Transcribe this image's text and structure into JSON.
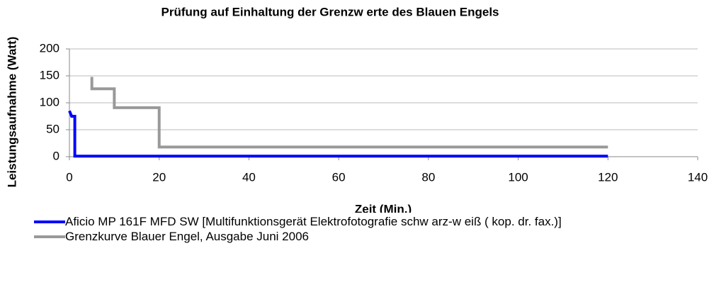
{
  "chart_data": {
    "type": "line",
    "title": "Prüfung auf Einhaltung der Grenzw erte des Blauen Engels",
    "x_label": "Zeit (Min.)",
    "y_label": "Leistungsaufnahme (Watt)",
    "xlim": [
      0,
      140
    ],
    "xticks": [
      0,
      20,
      40,
      60,
      80,
      100,
      120,
      140
    ],
    "ylim": [
      0,
      200
    ],
    "yticks": [
      0,
      50,
      100,
      150,
      200
    ],
    "grid": true,
    "legend": "bottom",
    "series": [
      {
        "name": "Aficio MP 161F MFD SW [Multifunktionsgerät Elektrofotografie schw arz-w eiß ( kop. dr. fax.)]",
        "color": "#0000ff",
        "x": [
          0,
          0.5,
          1.2,
          1.2,
          120
        ],
        "values": [
          85,
          75,
          75,
          1,
          1
        ]
      },
      {
        "name": "Grenzkurve Blauer Engel, Ausgabe Juni 2006",
        "color": "#999999",
        "x": [
          5,
          5,
          10,
          10,
          20,
          20,
          120
        ],
        "values": [
          148,
          126,
          126,
          91,
          91,
          18,
          18
        ]
      }
    ]
  }
}
